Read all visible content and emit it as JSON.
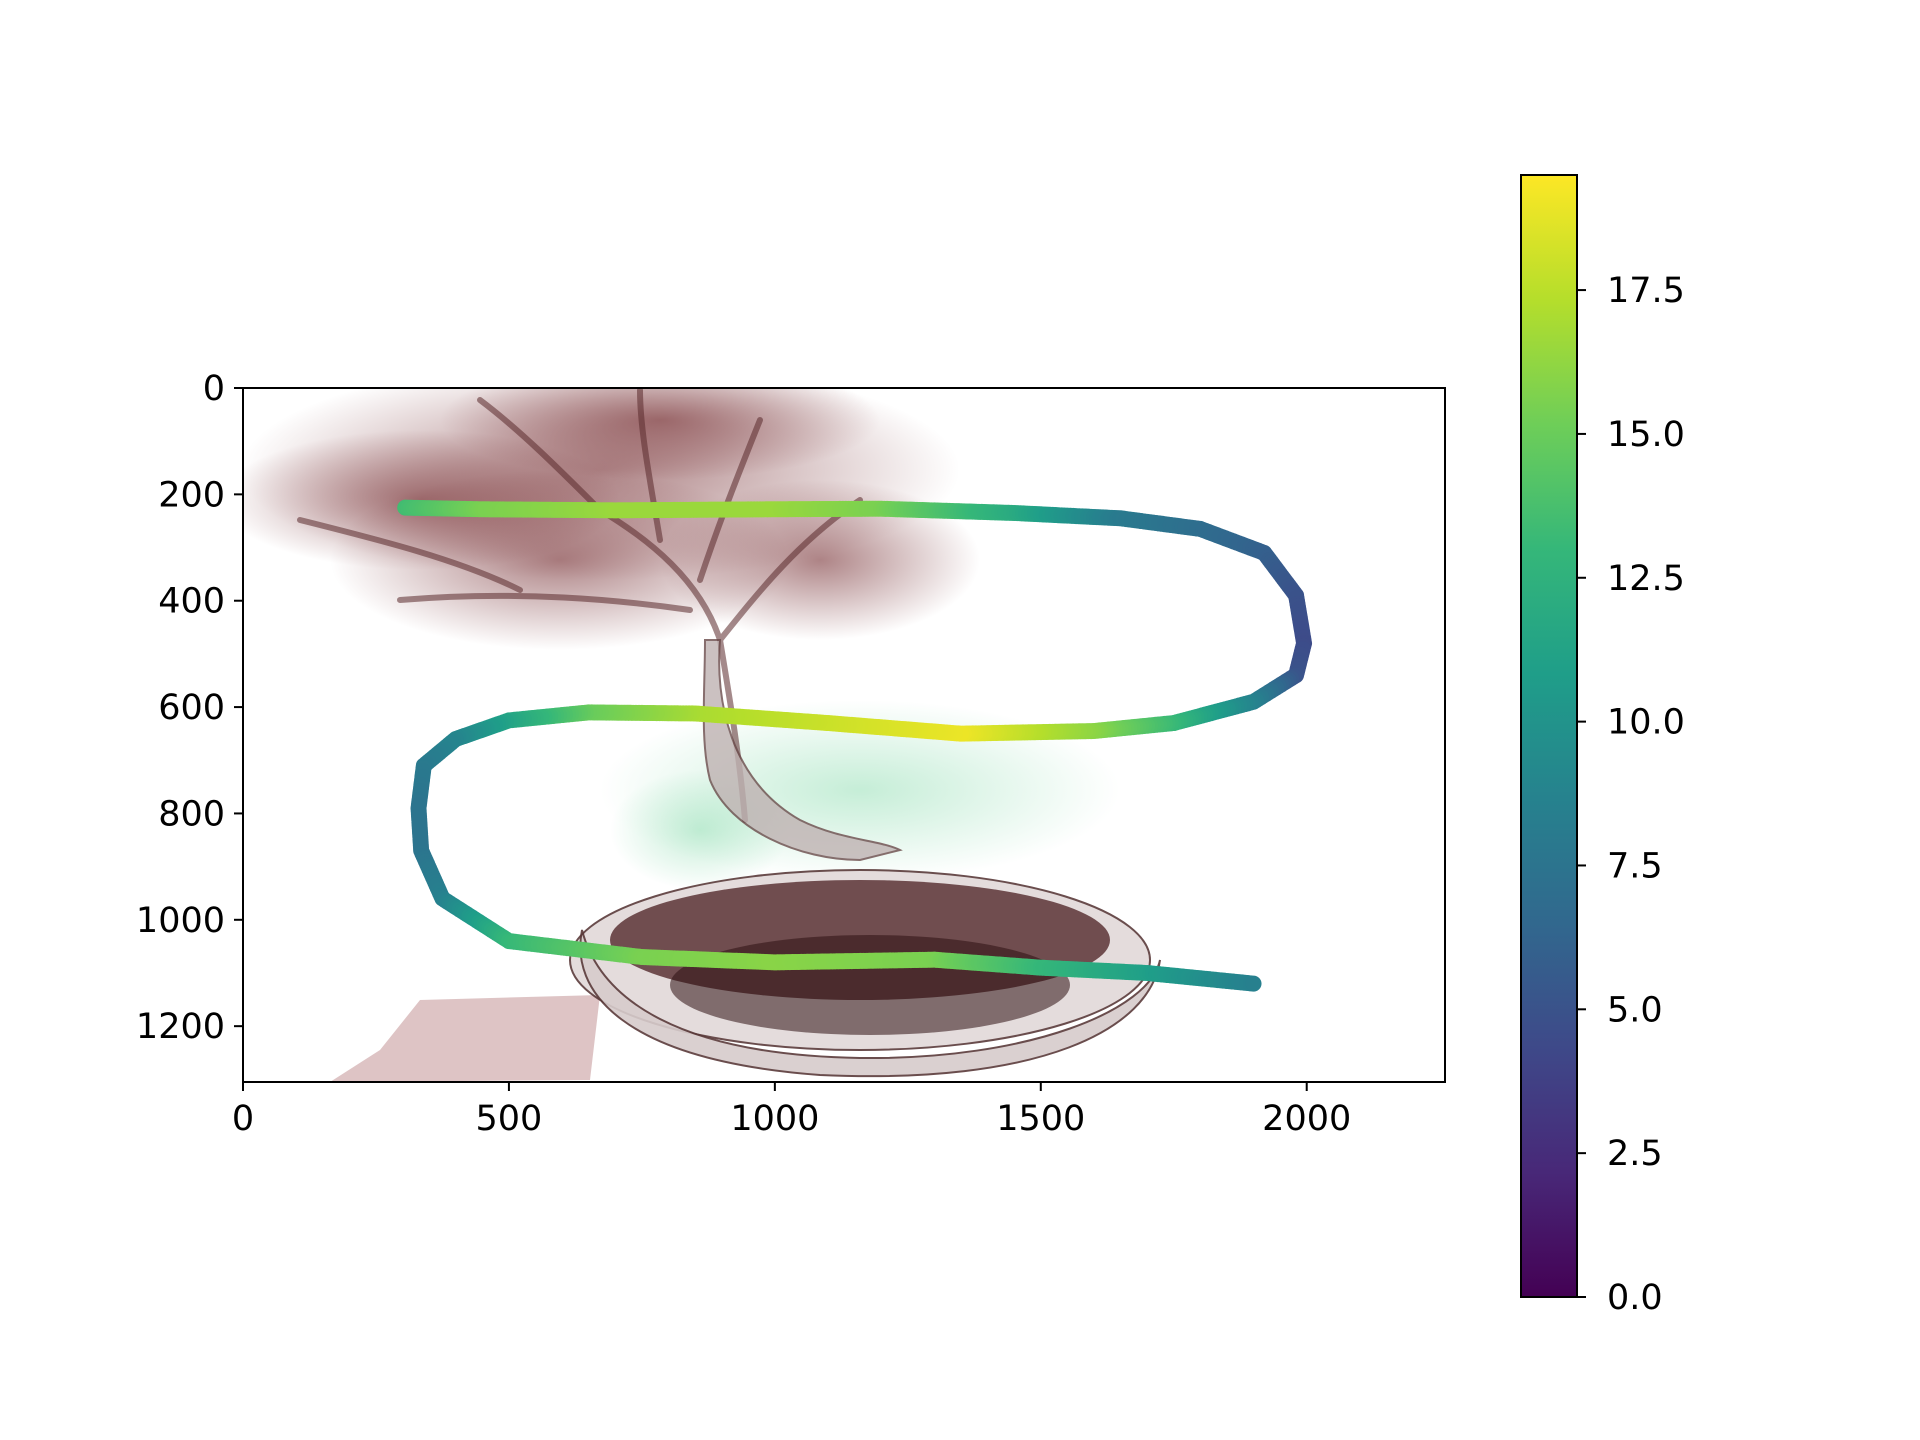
{
  "chart_data": {
    "type": "scatter",
    "background_image": "bonsai-tree-volume-render",
    "colormap": "viridis",
    "colormap_stops": [
      "#440154",
      "#482878",
      "#3e4989",
      "#31688e",
      "#26828e",
      "#1f9e89",
      "#35b779",
      "#6ece58",
      "#b5de2b",
      "#fde725"
    ],
    "xlim": [
      0,
      2260
    ],
    "ylim": [
      1305,
      0
    ],
    "x_ticks": [
      0,
      500,
      1000,
      1500,
      2000
    ],
    "y_ticks": [
      0,
      200,
      400,
      600,
      800,
      1000,
      1200
    ],
    "colorbar": {
      "range": [
        0.0,
        19.5
      ],
      "ticks": [
        "0.0",
        "2.5",
        "5.0",
        "7.5",
        "10.0",
        "12.5",
        "15.0",
        "17.5"
      ]
    },
    "path": [
      {
        "x": 305,
        "y": 225,
        "c": 13.5
      },
      {
        "x": 450,
        "y": 228,
        "c": 15.5
      },
      {
        "x": 700,
        "y": 230,
        "c": 16.5
      },
      {
        "x": 1000,
        "y": 228,
        "c": 16.5
      },
      {
        "x": 1200,
        "y": 227,
        "c": 15.5
      },
      {
        "x": 1450,
        "y": 235,
        "c": 12.0
      },
      {
        "x": 1650,
        "y": 245,
        "c": 8.0
      },
      {
        "x": 1800,
        "y": 265,
        "c": 7.0
      },
      {
        "x": 1920,
        "y": 310,
        "c": 6.0
      },
      {
        "x": 1980,
        "y": 390,
        "c": 5.0
      },
      {
        "x": 1995,
        "y": 480,
        "c": 4.5
      },
      {
        "x": 1980,
        "y": 540,
        "c": 5.0
      },
      {
        "x": 1900,
        "y": 590,
        "c": 8.5
      },
      {
        "x": 1750,
        "y": 630,
        "c": 13.0
      },
      {
        "x": 1600,
        "y": 645,
        "c": 16.0
      },
      {
        "x": 1350,
        "y": 650,
        "c": 19.0
      },
      {
        "x": 1100,
        "y": 630,
        "c": 18.0
      },
      {
        "x": 850,
        "y": 612,
        "c": 17.0
      },
      {
        "x": 650,
        "y": 610,
        "c": 15.0
      },
      {
        "x": 500,
        "y": 625,
        "c": 11.5
      },
      {
        "x": 400,
        "y": 660,
        "c": 9.0
      },
      {
        "x": 340,
        "y": 710,
        "c": 8.0
      },
      {
        "x": 330,
        "y": 790,
        "c": 7.5
      },
      {
        "x": 335,
        "y": 870,
        "c": 7.5
      },
      {
        "x": 375,
        "y": 960,
        "c": 8.5
      },
      {
        "x": 500,
        "y": 1040,
        "c": 13.0
      },
      {
        "x": 750,
        "y": 1070,
        "c": 15.5
      },
      {
        "x": 1000,
        "y": 1080,
        "c": 16.0
      },
      {
        "x": 1300,
        "y": 1075,
        "c": 15.5
      },
      {
        "x": 1500,
        "y": 1090,
        "c": 13.0
      },
      {
        "x": 1700,
        "y": 1100,
        "c": 11.0
      },
      {
        "x": 1900,
        "y": 1120,
        "c": 8.5
      }
    ]
  }
}
